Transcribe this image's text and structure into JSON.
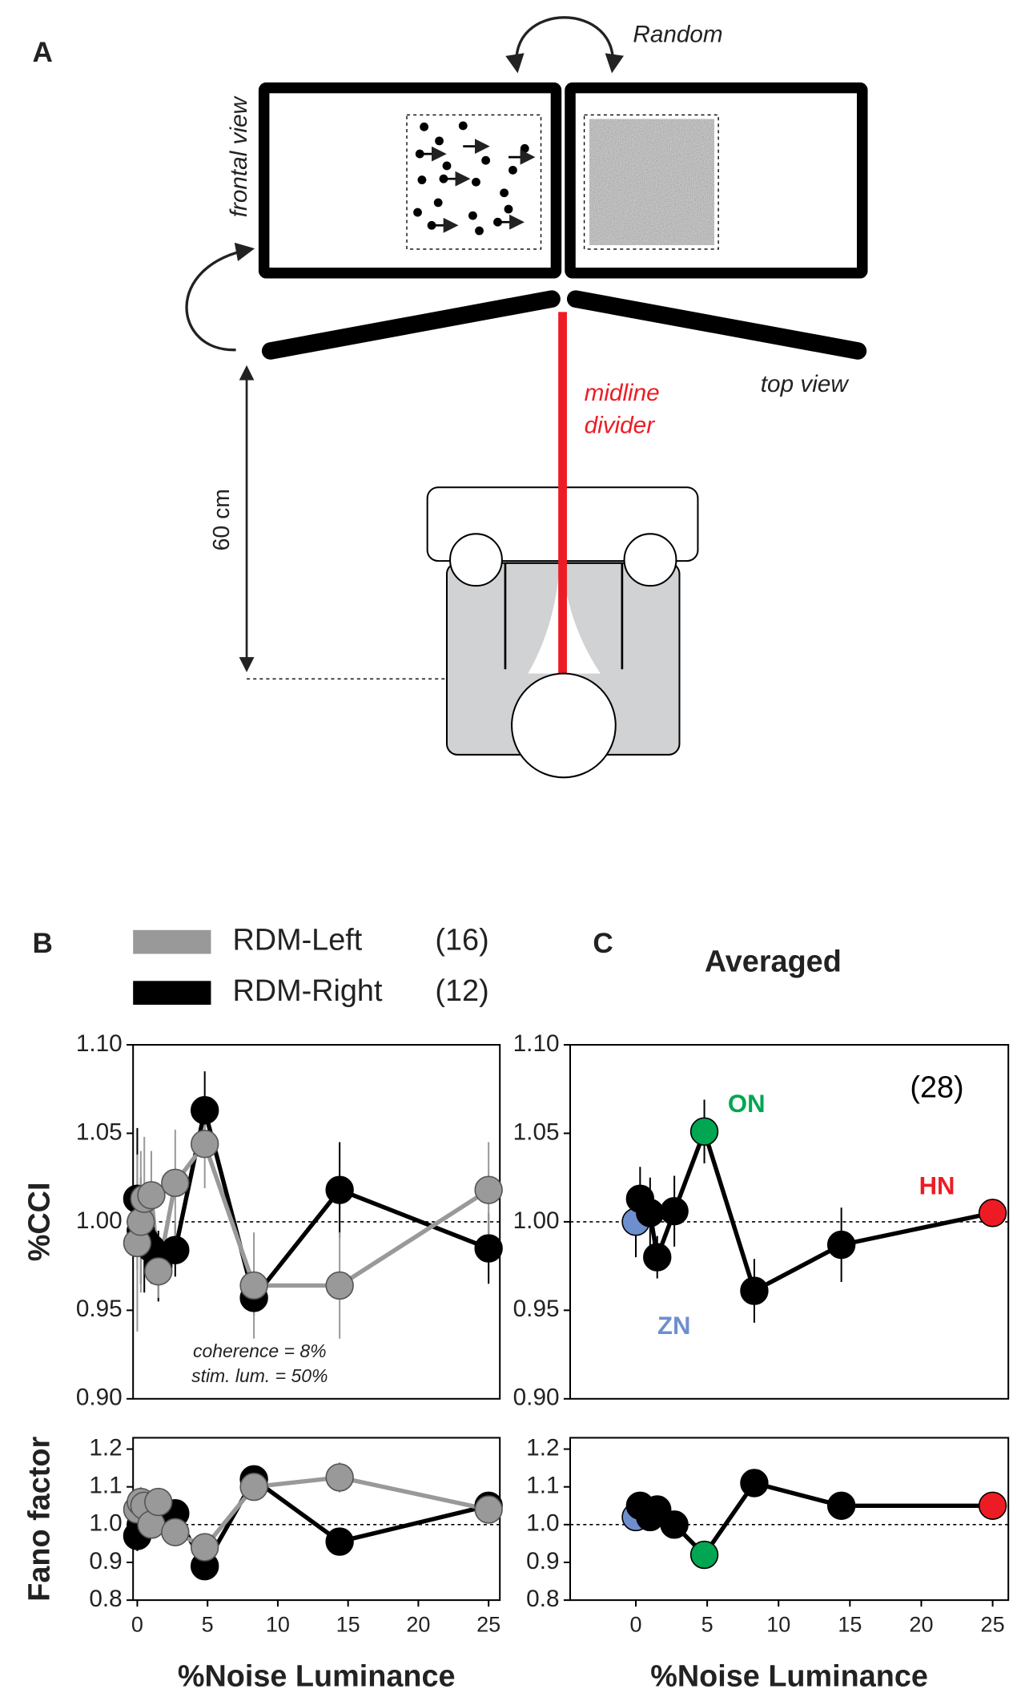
{
  "panel_labels": [
    "A",
    "B",
    "C"
  ],
  "diagram": {
    "random": "Random",
    "frontal_view": "frontal view",
    "top_view": "top view",
    "midline_divider": [
      "midline",
      "divider"
    ],
    "distance": "60 cm"
  },
  "chart_data": [
    {
      "type": "line",
      "ylabel": "%CCI",
      "xlim": [
        -0.3,
        25.8
      ],
      "ylim": [
        0.9,
        1.1
      ],
      "yticks": [
        {
          "value": 0.9,
          "label": "0.90"
        },
        0.95,
        {
          "value": 1,
          "label": "1.00"
        },
        1.05,
        {
          "value": 1.1,
          "label": "1.10"
        }
      ],
      "reference_line": 1,
      "x": [
        0,
        0.25,
        0.5,
        1,
        1.5,
        2.7,
        4.8,
        8.3,
        14.4,
        25
      ],
      "annotations": [
        "coherence =   8%",
        "stim. lum. = 50%"
      ],
      "series": [
        {
          "name": "RDM-Left",
          "count_label": "(16)",
          "color": "#999999",
          "values": [
            0.988,
            1.0,
            1.013,
            1.015,
            0.972,
            1.022,
            1.044,
            0.964,
            0.964,
            1.018
          ],
          "errors": [
            0.05,
            0.04,
            0.035,
            0.025,
            0.015,
            0.03,
            0.025,
            0.03,
            0.03,
            0.027
          ]
        },
        {
          "name": "RDM-Right",
          "count_label": "(12)",
          "color": "#000000",
          "values": [
            1.013,
            0.995,
            0.99,
            0.985,
            0.975,
            0.984,
            1.063,
            0.957,
            1.018,
            0.985
          ],
          "errors": [
            0.04,
            0.03,
            0.03,
            0.02,
            0.02,
            0.015,
            0.022,
            0.01,
            0.027,
            0.02
          ]
        }
      ]
    },
    {
      "type": "line",
      "ylabel": "Fano factor",
      "xlabel": "%Noise Luminance",
      "xlim": [
        -0.3,
        25.8
      ],
      "ylim": [
        0.8,
        1.23
      ],
      "yticks": [
        0.8,
        0.9,
        {
          "value": 1,
          "label": "1.0"
        },
        1.1,
        1.2
      ],
      "xticks": [
        0,
        5,
        10,
        15,
        20,
        25
      ],
      "reference_line": 1,
      "x": [
        0,
        0.25,
        0.5,
        1,
        1.5,
        2.7,
        4.8,
        8.3,
        14.4,
        25
      ],
      "series": [
        {
          "color": "#999999",
          "values": [
            1.04,
            1.06,
            1.05,
            1.0,
            1.06,
            0.98,
            0.94,
            1.1,
            1.125,
            1.04
          ],
          "errors": [
            0.04,
            0.04,
            0.03,
            0.03,
            0.03,
            0.03,
            0.02,
            0.03,
            0.04,
            0.02
          ]
        },
        {
          "color": "#000000",
          "values": [
            0.97,
            1.0,
            1.04,
            1.0,
            1.02,
            1.03,
            0.89,
            1.12,
            0.955,
            1.05
          ],
          "errors": [
            0.04,
            0.03,
            0.03,
            0.03,
            0.03,
            0.03,
            0.02,
            0.03,
            0.03,
            0.02
          ]
        }
      ]
    },
    {
      "type": "line",
      "title": "Averaged",
      "xlim": [
        -4.6,
        26.1
      ],
      "ylim": [
        0.9,
        1.1
      ],
      "yticks": [
        {
          "value": 0.9,
          "label": "0.90"
        },
        0.95,
        {
          "value": 1,
          "label": "1.00"
        },
        1.05,
        {
          "value": 1.1,
          "label": "1.10"
        }
      ],
      "reference_line": 1,
      "x": [
        0,
        0.3,
        1,
        1.5,
        2.7,
        4.8,
        8.3,
        14.4,
        25
      ],
      "annotations": [
        {
          "text": "(28)",
          "color": "#000000"
        },
        {
          "text": "ON",
          "color": "#00a651"
        },
        {
          "text": "HN",
          "color": "#ed1c24"
        },
        {
          "text": "ZN",
          "color": "#6e8fce"
        }
      ],
      "series": [
        {
          "color": "#000000",
          "point_colors": [
            "#6e8fce",
            "#000000",
            "#000000",
            "#000000",
            "#000000",
            "#00a651",
            "#000000",
            "#000000",
            "#ed1c24"
          ],
          "values": [
            1.0,
            1.013,
            1.005,
            0.98,
            1.006,
            1.051,
            0.961,
            0.987,
            1.005
          ],
          "errors": [
            0.02,
            0.018,
            0.02,
            0.012,
            0.02,
            0.018,
            0.018,
            0.021,
            0
          ]
        }
      ]
    },
    {
      "type": "line",
      "xlabel": "%Noise Luminance",
      "xlim": [
        -4.6,
        26.1
      ],
      "ylim": [
        0.8,
        1.23
      ],
      "yticks": [
        0.8,
        0.9,
        {
          "value": 1,
          "label": "1.0"
        },
        1.1,
        1.2
      ],
      "xticks": [
        0,
        5,
        10,
        15,
        20,
        25
      ],
      "reference_line": 1,
      "x": [
        0,
        0.3,
        1,
        1.5,
        2.7,
        4.8,
        8.3,
        14.4,
        25
      ],
      "series": [
        {
          "color": "#000000",
          "point_colors": [
            "#6e8fce",
            "#000000",
            "#000000",
            "#000000",
            "#000000",
            "#00a651",
            "#000000",
            "#000000",
            "#ed1c24"
          ],
          "values": [
            1.02,
            1.05,
            1.02,
            1.04,
            1.0,
            0.92,
            1.11,
            1.05,
            1.05
          ],
          "errors": [
            0.03,
            0.03,
            0.02,
            0.02,
            0.02,
            0.02,
            0.02,
            0.02,
            0
          ]
        }
      ]
    }
  ]
}
